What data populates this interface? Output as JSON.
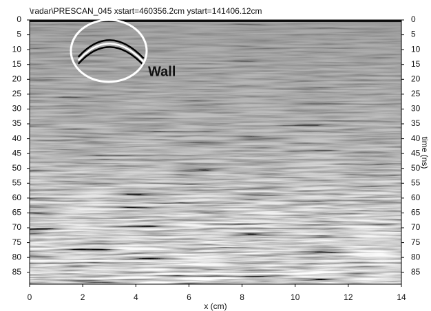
{
  "chart_data": {
    "type": "radargram",
    "title": "\\radar\\PRESCAN_045    xstart=460356.2cm    ystart=141406.12cm",
    "annotation": "Wall",
    "xlabel": "x (cm)",
    "ylabel": "time (ns)",
    "xlim": [
      0,
      14
    ],
    "xticks": [
      0,
      2,
      4,
      6,
      8,
      10,
      12,
      14
    ],
    "ylim": [
      0,
      89
    ],
    "yticks": [
      0,
      5,
      10,
      15,
      20,
      25,
      30,
      35,
      40,
      45,
      50,
      55,
      60,
      65,
      70,
      75,
      80,
      85
    ],
    "yreversed": true
  }
}
